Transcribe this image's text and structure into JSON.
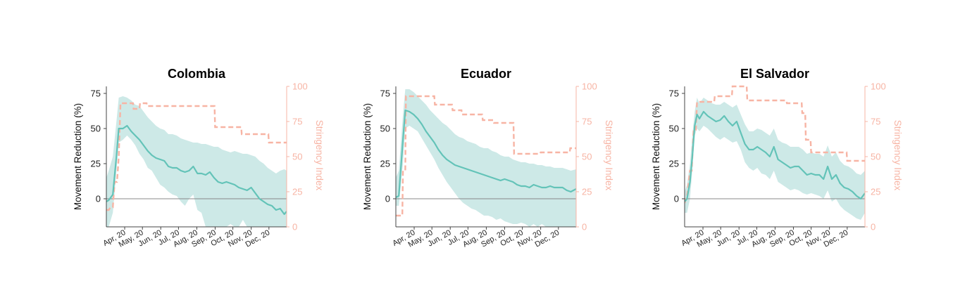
{
  "colors": {
    "movement": "#63c3b8",
    "band": "#cde9e7",
    "stringency": "#f7b4a4",
    "axis": "#444444",
    "zero_line": "#888888"
  },
  "chart_data": [
    {
      "type": "line",
      "title": "Colombia",
      "ylabel": "Movement Reduction (%)",
      "ylabel_right": "Stringency Index",
      "ylim": [
        -20,
        80
      ],
      "yticks": [
        0,
        25,
        50,
        75
      ],
      "ylim_right": [
        0,
        100
      ],
      "yticks_right": [
        0,
        25,
        50,
        75,
        100
      ],
      "xlim": [
        "2020-03-01",
        "2020-12-31"
      ],
      "xtick_labels": [
        {
          "date": "2020-04-01",
          "label": "Apr, 20"
        },
        {
          "date": "2020-05-01",
          "label": "May, 20"
        },
        {
          "date": "2020-06-01",
          "label": "Jun, 20"
        },
        {
          "date": "2020-07-01",
          "label": "Jul, 20"
        },
        {
          "date": "2020-08-01",
          "label": "Aug, 20"
        },
        {
          "date": "2020-09-01",
          "label": "Sep, 20"
        },
        {
          "date": "2020-10-01",
          "label": "Oct, 20"
        },
        {
          "date": "2020-11-01",
          "label": "Nov, 20"
        },
        {
          "date": "2020-12-01",
          "label": "Dec, 20"
        }
      ],
      "series": [
        {
          "kind": "movement",
          "x": [
            "2020-03-01",
            "2020-03-05",
            "2020-03-12",
            "2020-03-18",
            "2020-03-22",
            "2020-03-29",
            "2020-04-05",
            "2020-04-12",
            "2020-04-19",
            "2020-04-26",
            "2020-05-03",
            "2020-05-10",
            "2020-05-17",
            "2020-05-24",
            "2020-05-31",
            "2020-06-07",
            "2020-06-14",
            "2020-06-21",
            "2020-06-28",
            "2020-07-05",
            "2020-07-12",
            "2020-07-19",
            "2020-07-26",
            "2020-08-02",
            "2020-08-09",
            "2020-08-16",
            "2020-08-23",
            "2020-08-30",
            "2020-09-06",
            "2020-09-13",
            "2020-09-20",
            "2020-09-27",
            "2020-10-04",
            "2020-10-11",
            "2020-10-18",
            "2020-10-25",
            "2020-11-01",
            "2020-11-08",
            "2020-11-15",
            "2020-11-22",
            "2020-11-29",
            "2020-12-06",
            "2020-12-13",
            "2020-12-20",
            "2020-12-27",
            "2020-12-31"
          ],
          "y": [
            -2,
            -1,
            3,
            30,
            50,
            50,
            52,
            48,
            45,
            42,
            38,
            34,
            31,
            29,
            28,
            27,
            23,
            22,
            22,
            20,
            19,
            20,
            23,
            18,
            18,
            17,
            19,
            15,
            12,
            11,
            12,
            11,
            10,
            8,
            7,
            6,
            8,
            4,
            0,
            -2,
            -4,
            -5,
            -8,
            -7,
            -11,
            -9
          ],
          "lower": [
            -20,
            -20,
            -10,
            20,
            40,
            42,
            45,
            42,
            38,
            32,
            28,
            22,
            20,
            15,
            10,
            8,
            5,
            3,
            2,
            -2,
            -5,
            0,
            3,
            -8,
            -10,
            -20,
            -20,
            -20,
            -20,
            -20,
            -20,
            -18,
            -20,
            -20,
            -15,
            -20,
            -20,
            -20,
            -20,
            -20,
            -20,
            -20,
            -20,
            -20,
            -20,
            -20
          ],
          "upper": [
            15,
            20,
            30,
            55,
            72,
            73,
            72,
            70,
            67,
            66,
            62,
            58,
            55,
            52,
            50,
            49,
            46,
            46,
            45,
            43,
            42,
            41,
            40,
            40,
            39,
            39,
            38,
            37,
            37,
            35,
            34,
            33,
            34,
            33,
            32,
            32,
            31,
            30,
            27,
            25,
            22,
            20,
            18,
            20,
            21,
            20
          ]
        },
        {
          "kind": "stringency",
          "x": [
            "2020-03-01",
            "2020-03-05",
            "2020-03-08",
            "2020-03-12",
            "2020-03-15",
            "2020-03-19",
            "2020-03-22",
            "2020-03-25",
            "2020-04-15",
            "2020-04-16",
            "2020-04-26",
            "2020-04-27",
            "2020-05-08",
            "2020-05-09",
            "2020-08-31",
            "2020-09-01",
            "2020-10-15",
            "2020-10-16",
            "2020-11-30",
            "2020-12-01",
            "2020-12-31"
          ],
          "y": [
            12,
            12,
            14,
            14,
            32,
            32,
            50,
            88,
            88,
            84,
            84,
            88,
            88,
            86,
            86,
            71,
            71,
            66,
            66,
            60,
            60
          ]
        }
      ]
    },
    {
      "type": "line",
      "title": "Ecuador",
      "ylabel": "Movement Reduction (%)",
      "ylabel_right": "Stringency Index",
      "ylim": [
        -20,
        80
      ],
      "yticks": [
        0,
        25,
        50,
        75
      ],
      "ylim_right": [
        0,
        100
      ],
      "yticks_right": [
        0,
        25,
        50,
        75,
        100
      ],
      "xlim": [
        "2020-03-01",
        "2020-12-31"
      ],
      "xtick_labels": [
        {
          "date": "2020-04-01",
          "label": "Apr, 20"
        },
        {
          "date": "2020-05-01",
          "label": "May, 20"
        },
        {
          "date": "2020-06-01",
          "label": "Jun, 20"
        },
        {
          "date": "2020-07-01",
          "label": "Jul, 20"
        },
        {
          "date": "2020-08-01",
          "label": "Aug, 20"
        },
        {
          "date": "2020-09-01",
          "label": "Sep, 20"
        },
        {
          "date": "2020-10-01",
          "label": "Oct, 20"
        },
        {
          "date": "2020-11-01",
          "label": "Nov, 20"
        },
        {
          "date": "2020-12-01",
          "label": "Dec, 20"
        }
      ],
      "series": [
        {
          "kind": "movement",
          "x": [
            "2020-03-01",
            "2020-03-06",
            "2020-03-13",
            "2020-03-17",
            "2020-03-24",
            "2020-03-31",
            "2020-04-07",
            "2020-04-14",
            "2020-04-21",
            "2020-04-28",
            "2020-05-05",
            "2020-05-12",
            "2020-05-19",
            "2020-05-26",
            "2020-06-02",
            "2020-06-09",
            "2020-06-16",
            "2020-06-23",
            "2020-06-30",
            "2020-07-07",
            "2020-07-14",
            "2020-07-21",
            "2020-07-28",
            "2020-08-04",
            "2020-08-11",
            "2020-08-18",
            "2020-08-25",
            "2020-09-01",
            "2020-09-08",
            "2020-09-15",
            "2020-09-22",
            "2020-09-29",
            "2020-10-06",
            "2020-10-13",
            "2020-10-20",
            "2020-10-27",
            "2020-11-03",
            "2020-11-10",
            "2020-11-17",
            "2020-11-24",
            "2020-12-01",
            "2020-12-08",
            "2020-12-15",
            "2020-12-22",
            "2020-12-31"
          ],
          "y": [
            1,
            2,
            42,
            63,
            62,
            60,
            57,
            53,
            48,
            44,
            40,
            35,
            31,
            28,
            26,
            24,
            23,
            22,
            21,
            20,
            19,
            18,
            17,
            16,
            15,
            14,
            13,
            14,
            13,
            12,
            10,
            9,
            9,
            8,
            10,
            9,
            8,
            8,
            9,
            8,
            8,
            8,
            6,
            5,
            7
          ],
          "lower": [
            -5,
            -5,
            25,
            50,
            52,
            50,
            48,
            43,
            38,
            33,
            28,
            22,
            17,
            12,
            8,
            4,
            0,
            -3,
            -5,
            -7,
            -8,
            -10,
            -12,
            -12,
            -13,
            -15,
            -14,
            -16,
            -17,
            -18,
            -18,
            -17,
            -18,
            -20,
            -18,
            -20,
            -18,
            -20,
            -20,
            -20,
            -20,
            -20,
            -20,
            -20,
            -20
          ],
          "upper": [
            15,
            20,
            60,
            78,
            78,
            76,
            73,
            70,
            67,
            63,
            60,
            57,
            54,
            52,
            49,
            46,
            44,
            43,
            41,
            40,
            39,
            37,
            36,
            36,
            34,
            33,
            31,
            30,
            30,
            28,
            27,
            26,
            26,
            25,
            25,
            24,
            24,
            23,
            23,
            22,
            22,
            22,
            21,
            20,
            21
          ]
        },
        {
          "kind": "stringency",
          "x": [
            "2020-03-01",
            "2020-03-12",
            "2020-03-13",
            "2020-03-17",
            "2020-03-18",
            "2020-05-05",
            "2020-05-06",
            "2020-06-04",
            "2020-06-05",
            "2020-06-20",
            "2020-06-21",
            "2020-07-25",
            "2020-07-26",
            "2020-08-13",
            "2020-08-14",
            "2020-09-16",
            "2020-09-17",
            "2020-10-31",
            "2020-11-01",
            "2020-12-20",
            "2020-12-21",
            "2020-12-31"
          ],
          "y": [
            8,
            8,
            40,
            40,
            93,
            93,
            87,
            87,
            83,
            83,
            80,
            80,
            76,
            76,
            74,
            74,
            52,
            52,
            53,
            53,
            56,
            56
          ]
        }
      ]
    },
    {
      "type": "line",
      "title": "El Salvador",
      "ylabel": "Movement Reduction (%)",
      "ylabel_right": "Stringency Index",
      "ylim": [
        -20,
        80
      ],
      "yticks": [
        0,
        25,
        50,
        75
      ],
      "ylim_right": [
        0,
        100
      ],
      "yticks_right": [
        0,
        25,
        50,
        75,
        100
      ],
      "xlim": [
        "2020-03-01",
        "2020-12-31"
      ],
      "xtick_labels": [
        {
          "date": "2020-04-01",
          "label": "Apr, 20"
        },
        {
          "date": "2020-05-01",
          "label": "May, 20"
        },
        {
          "date": "2020-06-01",
          "label": "Jun, 20"
        },
        {
          "date": "2020-07-01",
          "label": "Jul, 20"
        },
        {
          "date": "2020-08-01",
          "label": "Aug, 20"
        },
        {
          "date": "2020-09-01",
          "label": "Sep, 20"
        },
        {
          "date": "2020-10-01",
          "label": "Oct, 20"
        },
        {
          "date": "2020-11-01",
          "label": "Nov, 20"
        },
        {
          "date": "2020-12-01",
          "label": "Dec, 20"
        }
      ],
      "series": [
        {
          "kind": "movement",
          "x": [
            "2020-03-01",
            "2020-03-05",
            "2020-03-10",
            "2020-03-14",
            "2020-03-18",
            "2020-03-22",
            "2020-03-26",
            "2020-04-02",
            "2020-04-09",
            "2020-04-16",
            "2020-04-23",
            "2020-04-30",
            "2020-05-07",
            "2020-05-14",
            "2020-05-21",
            "2020-05-28",
            "2020-06-04",
            "2020-06-11",
            "2020-06-18",
            "2020-06-25",
            "2020-07-02",
            "2020-07-09",
            "2020-07-16",
            "2020-07-23",
            "2020-07-30",
            "2020-08-06",
            "2020-08-13",
            "2020-08-20",
            "2020-08-27",
            "2020-09-03",
            "2020-09-10",
            "2020-09-17",
            "2020-09-24",
            "2020-10-01",
            "2020-10-08",
            "2020-10-15",
            "2020-10-22",
            "2020-10-29",
            "2020-11-05",
            "2020-11-12",
            "2020-11-19",
            "2020-11-26",
            "2020-12-03",
            "2020-12-10",
            "2020-12-17",
            "2020-12-24",
            "2020-12-31"
          ],
          "y": [
            -2,
            0,
            12,
            30,
            52,
            60,
            57,
            62,
            59,
            57,
            55,
            56,
            59,
            55,
            52,
            55,
            47,
            39,
            35,
            35,
            37,
            35,
            33,
            30,
            37,
            28,
            26,
            24,
            22,
            23,
            23,
            20,
            17,
            18,
            17,
            17,
            14,
            23,
            14,
            17,
            11,
            8,
            7,
            5,
            2,
            0,
            4
          ],
          "lower": [
            -10,
            -10,
            0,
            20,
            45,
            50,
            48,
            52,
            50,
            47,
            44,
            42,
            44,
            42,
            40,
            41,
            35,
            26,
            22,
            20,
            22,
            18,
            17,
            14,
            20,
            12,
            10,
            8,
            6,
            7,
            6,
            4,
            3,
            4,
            3,
            2,
            0,
            6,
            -2,
            0,
            -5,
            -8,
            -10,
            -12,
            -14,
            -15,
            -10
          ],
          "upper": [
            5,
            10,
            25,
            45,
            62,
            72,
            68,
            72,
            70,
            68,
            67,
            67,
            69,
            67,
            65,
            67,
            60,
            53,
            48,
            48,
            50,
            49,
            47,
            45,
            50,
            42,
            40,
            39,
            37,
            37,
            37,
            35,
            32,
            33,
            32,
            32,
            30,
            38,
            30,
            33,
            27,
            24,
            23,
            21,
            18,
            17,
            20
          ]
        },
        {
          "kind": "stringency",
          "x": [
            "2020-03-01",
            "2020-03-05",
            "2020-03-10",
            "2020-03-13",
            "2020-03-16",
            "2020-03-20",
            "2020-03-22",
            "2020-04-20",
            "2020-04-21",
            "2020-05-20",
            "2020-05-21",
            "2020-06-14",
            "2020-06-15",
            "2020-08-20",
            "2020-08-21",
            "2020-09-15",
            "2020-09-16",
            "2020-09-21",
            "2020-09-22",
            "2020-09-30",
            "2020-10-01",
            "2020-11-30",
            "2020-12-01",
            "2020-12-31"
          ],
          "y": [
            17,
            22,
            40,
            40,
            68,
            68,
            89,
            89,
            93,
            93,
            100,
            100,
            90,
            90,
            88,
            88,
            81,
            81,
            62,
            62,
            53,
            53,
            47,
            47
          ]
        }
      ]
    }
  ]
}
